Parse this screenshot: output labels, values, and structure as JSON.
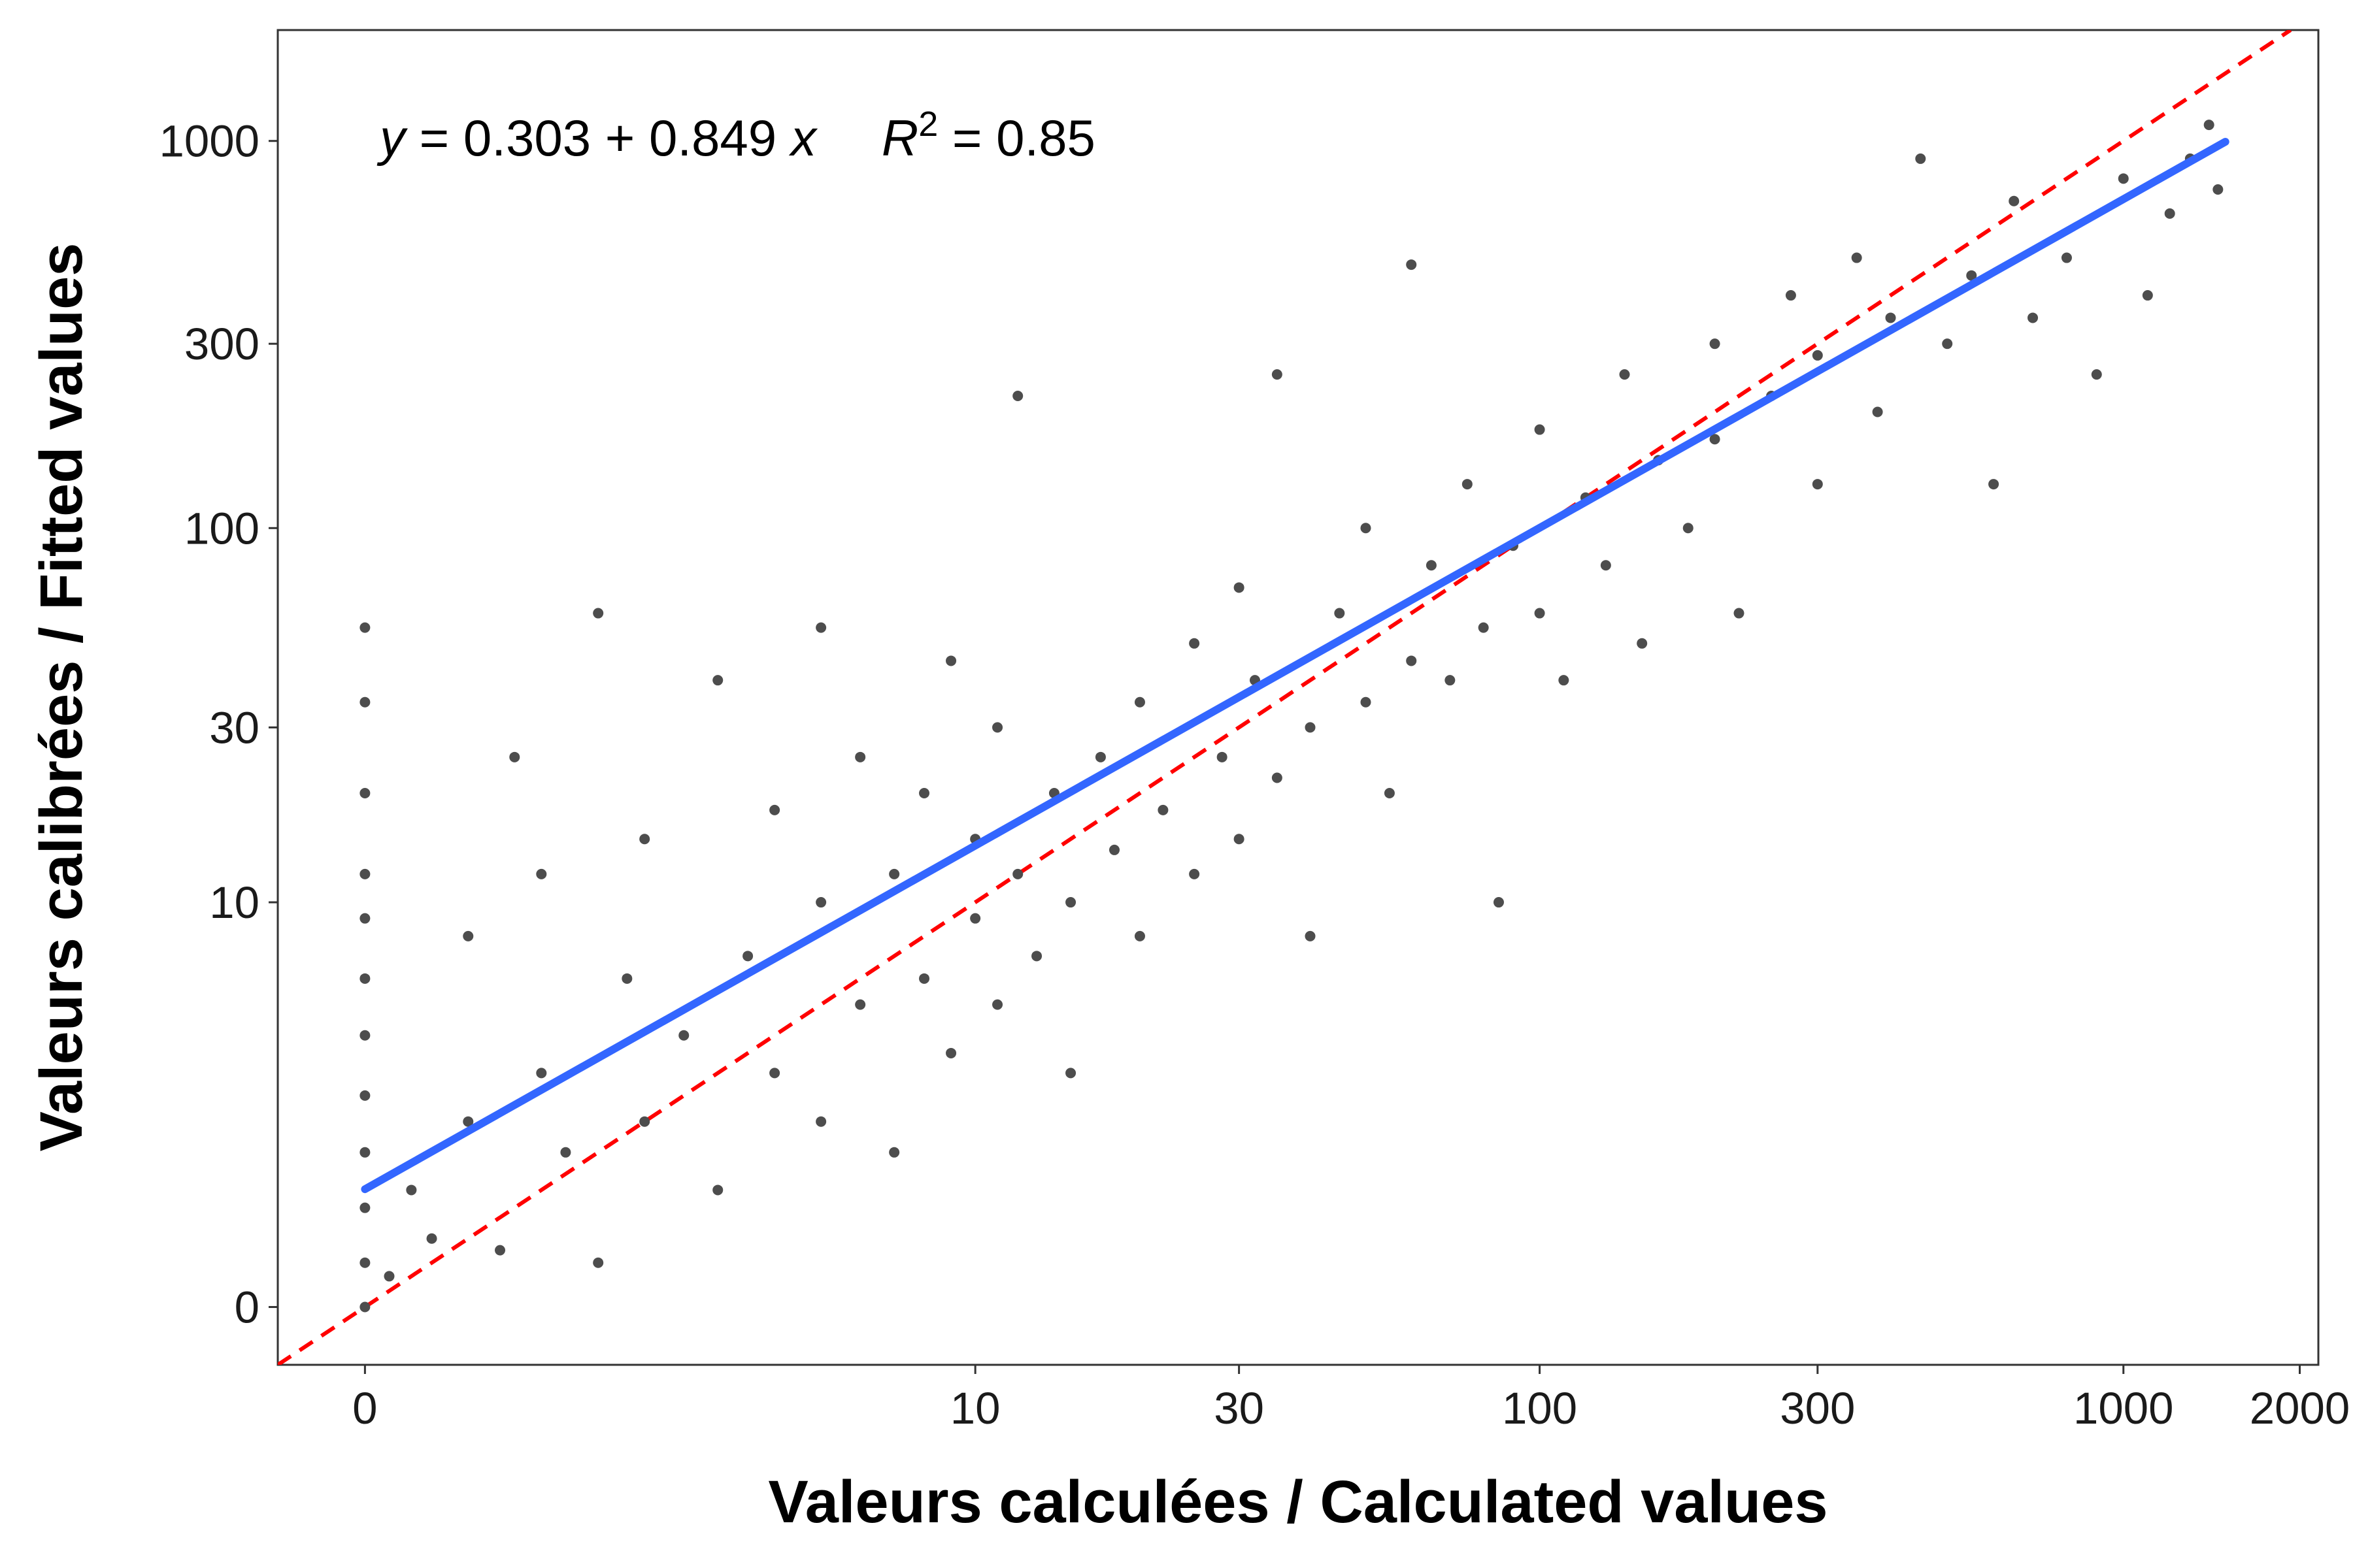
{
  "chart_data": {
    "type": "scatter",
    "xscale": "log1p",
    "yscale": "log1p",
    "xlabel": "Valeurs calculées / Calculated values",
    "ylabel": "Valeurs calibrées / Fitted values",
    "annotation": [
      "y",
      " = 0.303 + 0.849 ",
      "x",
      "R",
      "2",
      " = 0.85"
    ],
    "xlim": [
      -0.29,
      2152
    ],
    "ylim": [
      -0.29,
      1930
    ],
    "xticks": [
      0,
      10,
      30,
      100,
      300,
      1000,
      2000
    ],
    "yticks": [
      0,
      10,
      30,
      100,
      300,
      1000
    ],
    "series": [
      {
        "type": "scatter",
        "color": "#4d4d4d",
        "x": [
          0,
          0,
          0,
          0,
          0,
          0,
          0,
          0,
          0,
          0,
          0,
          0,
          0.1,
          0.2,
          0.3,
          0.5,
          0.5,
          0.7,
          0.8,
          1,
          1,
          1.2,
          1.5,
          1.5,
          1.8,
          2,
          2,
          2.5,
          3,
          3,
          3.5,
          4,
          4,
          5,
          5,
          5,
          6,
          6,
          7,
          7,
          8,
          8,
          9,
          9,
          10,
          10,
          11,
          11,
          12,
          12,
          13,
          14,
          15,
          15,
          17,
          18,
          20,
          20,
          22,
          25,
          25,
          28,
          30,
          30,
          32,
          35,
          35,
          40,
          40,
          45,
          50,
          50,
          55,
          60,
          60,
          65,
          70,
          75,
          80,
          85,
          90,
          100,
          100,
          110,
          120,
          130,
          140,
          150,
          160,
          180,
          200,
          200,
          220,
          250,
          270,
          300,
          300,
          350,
          380,
          400,
          450,
          500,
          550,
          600,
          650,
          700,
          800,
          900,
          1000,
          1100,
          1200,
          1300,
          1400,
          1450
        ],
        "values": [
          0,
          0.3,
          0.8,
          1.5,
          2.5,
          4,
          6,
          9,
          12,
          20,
          35,
          55,
          0.2,
          1,
          0.5,
          2,
          8,
          0.4,
          25,
          3,
          12,
          1.5,
          0.3,
          60,
          6,
          2,
          15,
          4,
          1,
          40,
          7,
          3,
          18,
          2,
          10,
          55,
          5,
          25,
          1.5,
          12,
          6,
          20,
          3.5,
          45,
          9,
          15,
          5,
          30,
          220,
          12,
          7,
          20,
          10,
          3,
          25,
          14,
          8,
          35,
          18,
          12,
          50,
          25,
          15,
          70,
          40,
          250,
          22,
          30,
          8,
          60,
          35,
          100,
          20,
          45,
          480,
          80,
          40,
          130,
          55,
          10,
          90,
          60,
          180,
          40,
          120,
          80,
          250,
          50,
          150,
          100,
          300,
          170,
          60,
          220,
          400,
          130,
          280,
          500,
          200,
          350,
          900,
          300,
          450,
          130,
          700,
          350,
          500,
          250,
          800,
          400,
          650,
          900,
          1100,
          750
        ]
      },
      {
        "type": "line",
        "color": "#3366ff",
        "x": [
          0,
          1493
        ],
        "values": [
          1.01,
          995
        ]
      },
      {
        "type": "dashed",
        "color": "#ff0000",
        "x": [
          -0.29,
          1930
        ],
        "values": [
          -0.29,
          1930
        ]
      }
    ]
  }
}
